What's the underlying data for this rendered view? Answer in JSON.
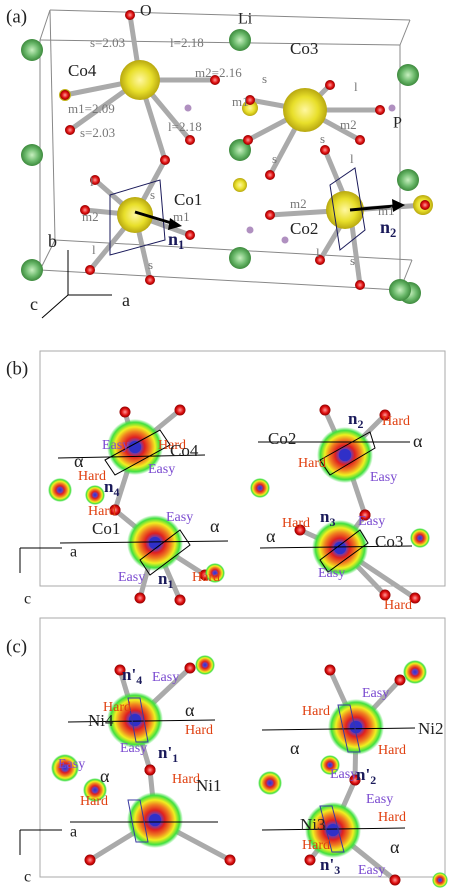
{
  "panels": [
    {
      "label": "(a)",
      "labels": [
        "O",
        "Li",
        "Co4",
        "s=2.03",
        "l=2.18",
        "m2=2.16",
        "m1=2.09",
        "s=2.03",
        "l=2.18",
        "Co3",
        "s",
        "l",
        "m1",
        "m2",
        "s",
        "P",
        "s",
        "l",
        "Co1",
        "l",
        "s",
        "m2",
        "m1",
        "l",
        "s",
        {
          "main": "n",
          "sub": "1"
        },
        "Co2",
        "m2",
        "l",
        "s",
        "m1",
        {
          "main": "n",
          "sub": "2"
        },
        "b",
        "c",
        "a"
      ]
    },
    {
      "label": "(b)",
      "labels": [
        "Easy",
        "Hard",
        "Co4",
        "α",
        "Hard",
        {
          "main": "n",
          "sub": "4"
        },
        "Easy",
        "Co2",
        {
          "main": "n",
          "sub": "2"
        },
        "Hard",
        "α",
        "Hard",
        "Easy",
        "Hard",
        "Easy",
        "Co1",
        "α",
        "Easy",
        "Hard",
        {
          "main": "n",
          "sub": "1"
        },
        "Hard",
        {
          "main": "n",
          "sub": "3"
        },
        "Easy",
        "α",
        "Co3",
        "Easy",
        "Hard",
        "a",
        "c"
      ]
    },
    {
      "label": "(c)",
      "labels": [
        {
          "main": "n'",
          "sub": "4"
        },
        "Easy",
        "α",
        "Ni4",
        "Hard",
        "Hard",
        "Easy",
        "Easy",
        "Hard",
        "Ni2",
        "α",
        "Hard",
        "Easy",
        {
          "main": "n'",
          "sub": "2"
        },
        "Easy",
        {
          "main": "n'",
          "sub": "1"
        },
        "α",
        "Hard",
        "Ni1",
        "Hard",
        "Easy",
        "Hard",
        "Ni3",
        "Hard",
        "α",
        {
          "main": "n'",
          "sub": "3"
        },
        "Easy",
        "a",
        "c"
      ]
    }
  ]
}
